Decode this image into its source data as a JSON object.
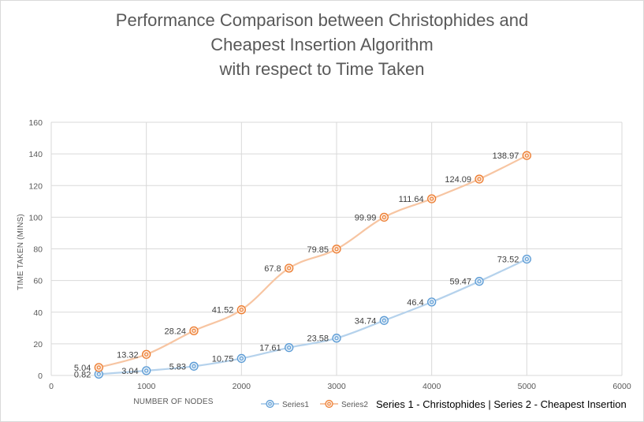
{
  "chart_data": {
    "type": "scatter",
    "title_lines": [
      "Performance Comparison between Christophides and",
      "Cheapest Insertion Algorithm",
      "with respect to Time Taken"
    ],
    "xlabel": "NUMBER OF NODES",
    "ylabel": "TIME TAKEN (MINS)",
    "xlim": [
      0,
      6000
    ],
    "ylim": [
      0,
      160
    ],
    "xticks": [
      "0",
      "1000",
      "2000",
      "3000",
      "4000",
      "5000",
      "6000"
    ],
    "yticks": [
      "0",
      "20",
      "40",
      "60",
      "80",
      "100",
      "120",
      "140",
      "160"
    ],
    "grid": true,
    "smooth_lines": true,
    "legend_position": "bottom",
    "series": [
      {
        "name": "Series1",
        "color": "#5b9bd5",
        "x": [
          500,
          1000,
          1500,
          2000,
          2500,
          3000,
          3500,
          4000,
          4500,
          5000
        ],
        "y": [
          0.82,
          3.04,
          5.83,
          10.75,
          17.61,
          23.58,
          34.74,
          46.4,
          59.47,
          73.52
        ],
        "labels": [
          "0.82",
          "3.04",
          "5.83",
          "10.75",
          "17.61",
          "23.58",
          "34.74",
          "46.4",
          "59.47",
          "73.52"
        ]
      },
      {
        "name": "Series2",
        "color": "#ed7d31",
        "x": [
          500,
          1000,
          1500,
          2000,
          2500,
          3000,
          3500,
          4000,
          4500,
          5000
        ],
        "y": [
          5.04,
          13.32,
          28.24,
          41.52,
          67.8,
          79.85,
          99.99,
          111.64,
          124.09,
          138.97
        ],
        "labels": [
          "5.04",
          "13.32",
          "28.24",
          "41.52",
          "67.8",
          "79.85",
          "99.99",
          "111.64",
          "124.09",
          "138.97"
        ]
      }
    ],
    "note": "Series 1 - Christophides | Series 2 - Cheapest Insertion"
  }
}
